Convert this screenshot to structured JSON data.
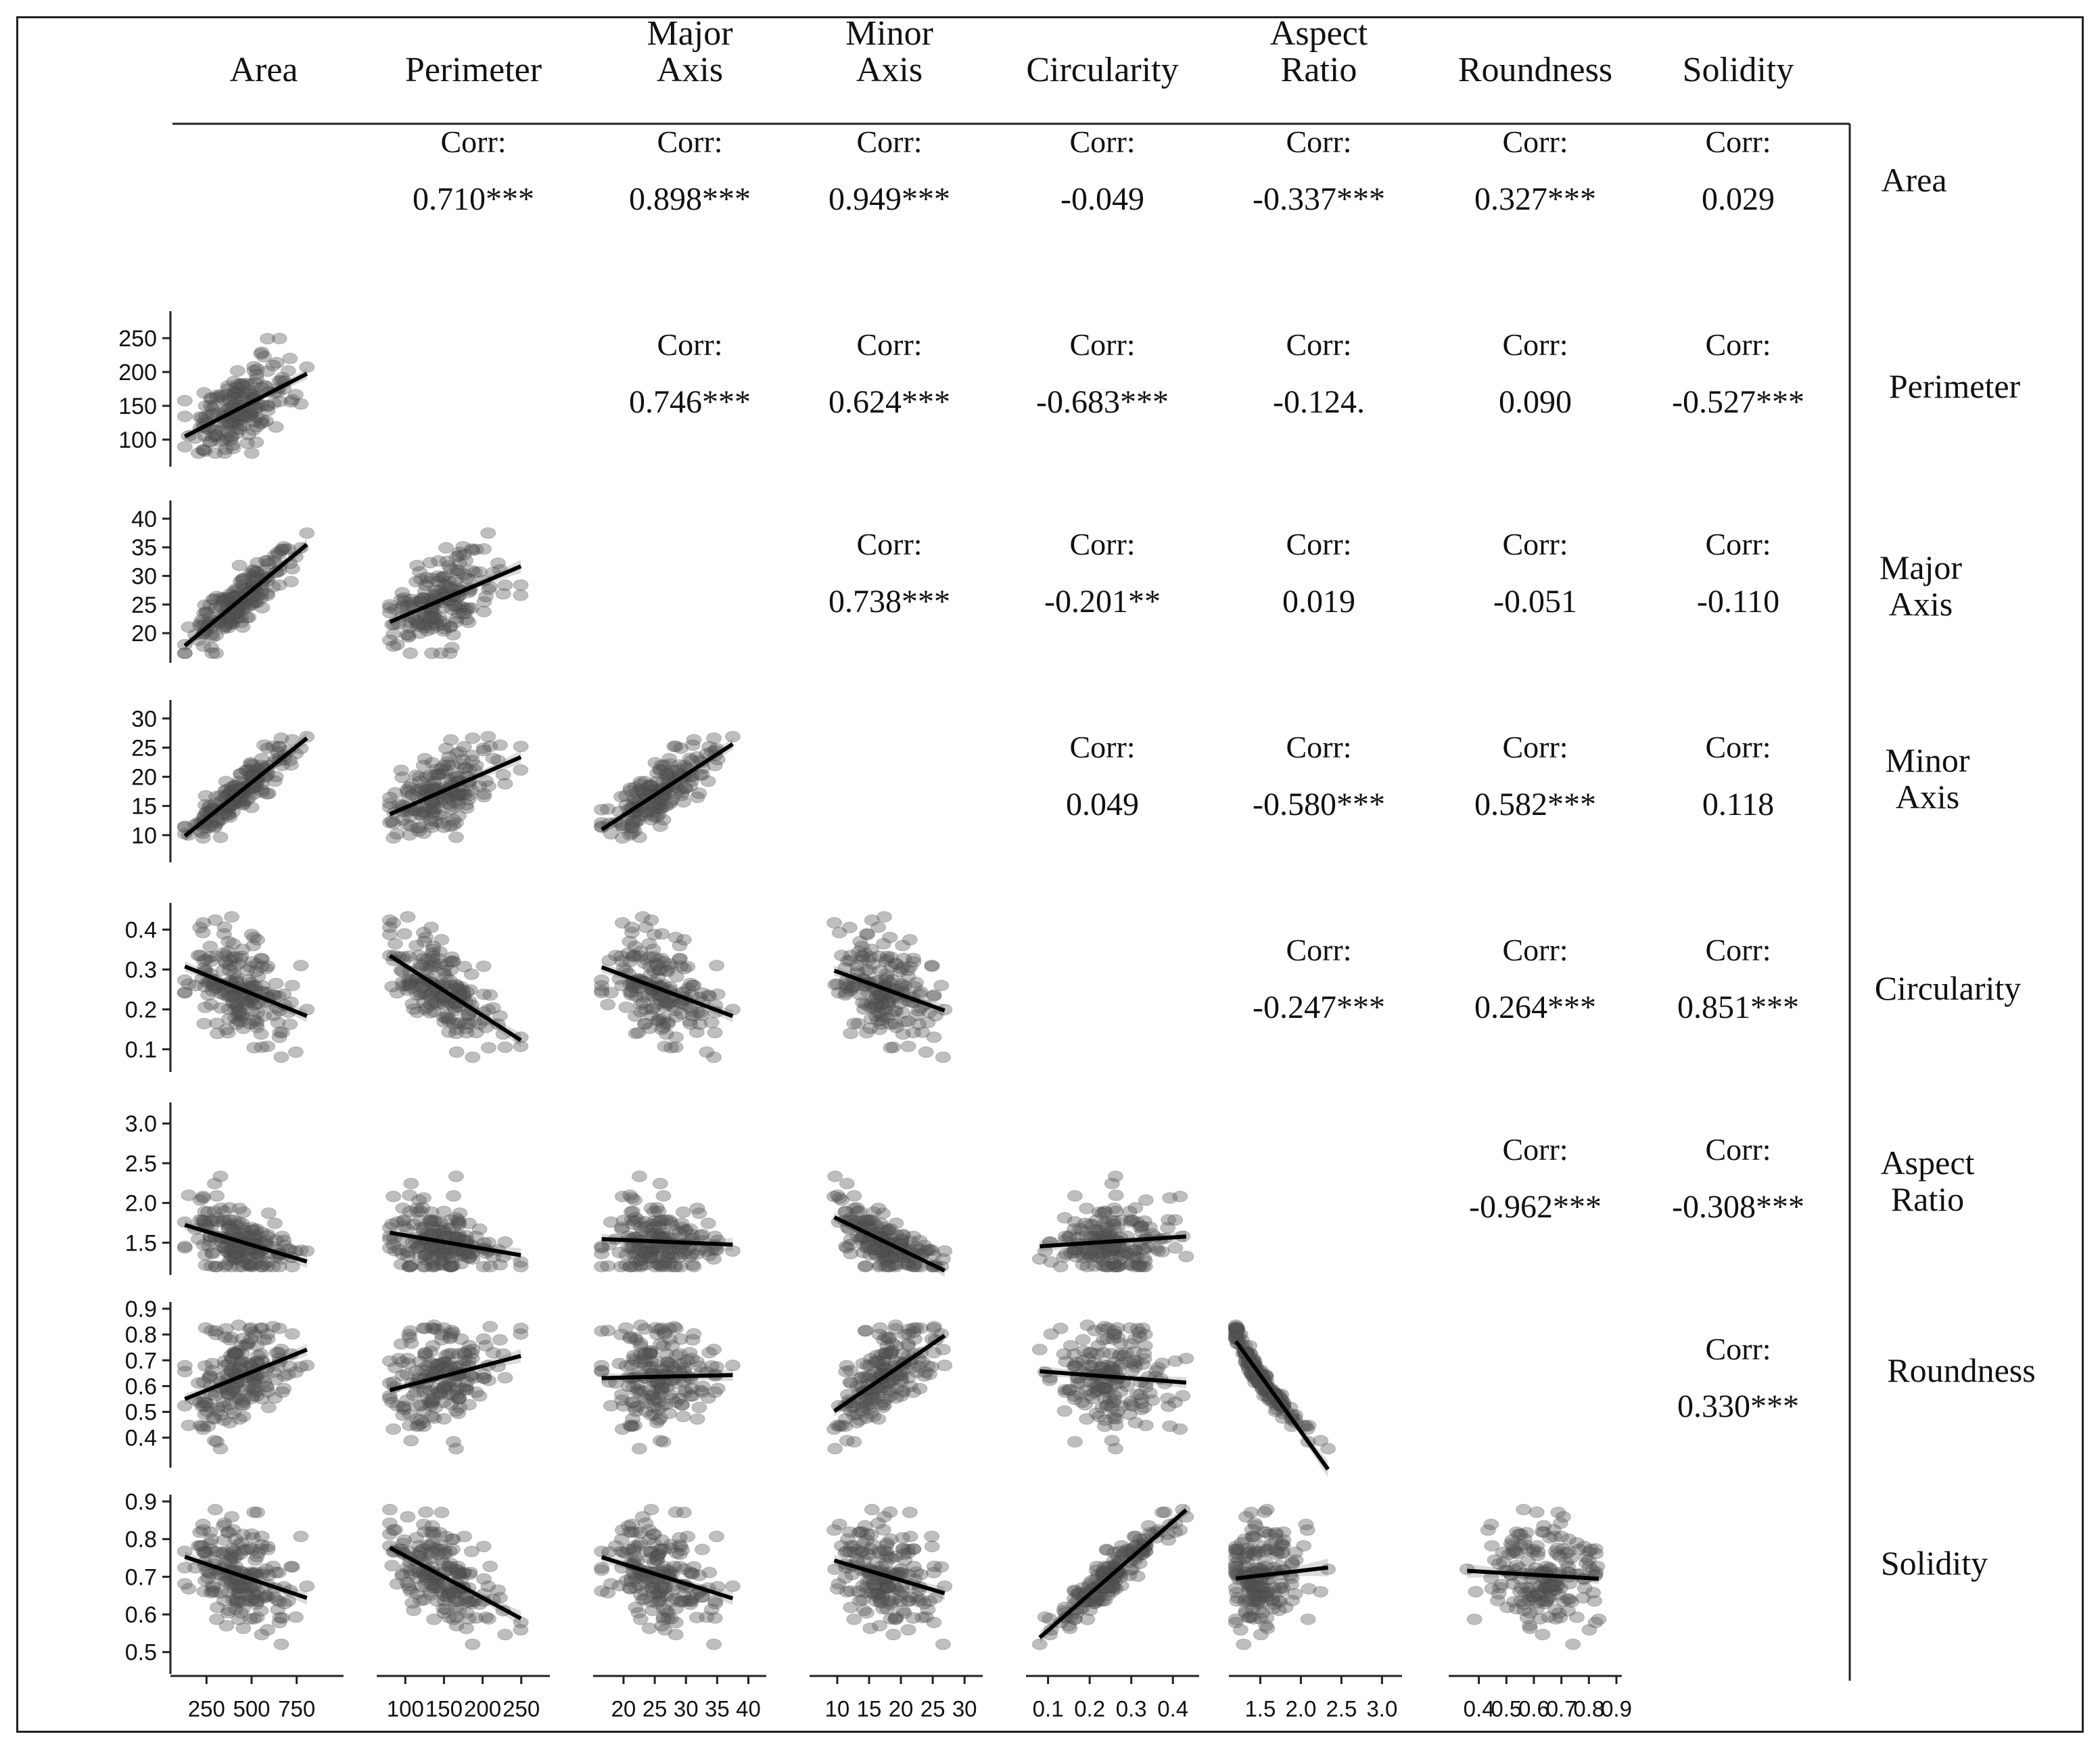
{
  "chart_data": {
    "type": "scatter",
    "variables": [
      "Area",
      "Perimeter",
      "Major Axis",
      "Minor Axis",
      "Circularity",
      "Aspect Ratio",
      "Roundness",
      "Solidity"
    ],
    "col_headers": [
      [
        "Area"
      ],
      [
        "Perimeter"
      ],
      [
        "Major",
        "Axis"
      ],
      [
        "Minor",
        "Axis"
      ],
      [
        "Circularity"
      ],
      [
        "Aspect",
        "Ratio"
      ],
      [
        "Roundness"
      ],
      [
        "Solidity"
      ]
    ],
    "row_headers": [
      [
        "Area"
      ],
      [
        "Perimeter"
      ],
      [
        "Major",
        "Axis"
      ],
      [
        "Minor",
        "Axis"
      ],
      [
        "Circularity"
      ],
      [
        "Aspect",
        "Ratio"
      ],
      [
        "Roundness"
      ],
      [
        "Solidity"
      ]
    ],
    "corr_label": "Corr:",
    "correlations": [
      {
        "row": 0,
        "col": 1,
        "text": "0.710***"
      },
      {
        "row": 0,
        "col": 2,
        "text": "0.898***"
      },
      {
        "row": 0,
        "col": 3,
        "text": "0.949***"
      },
      {
        "row": 0,
        "col": 4,
        "text": "-0.049"
      },
      {
        "row": 0,
        "col": 5,
        "text": "-0.337***"
      },
      {
        "row": 0,
        "col": 6,
        "text": "0.327***"
      },
      {
        "row": 0,
        "col": 7,
        "text": "0.029"
      },
      {
        "row": 1,
        "col": 2,
        "text": "0.746***"
      },
      {
        "row": 1,
        "col": 3,
        "text": "0.624***"
      },
      {
        "row": 1,
        "col": 4,
        "text": "-0.683***"
      },
      {
        "row": 1,
        "col": 5,
        "text": "-0.124."
      },
      {
        "row": 1,
        "col": 6,
        "text": "0.090"
      },
      {
        "row": 1,
        "col": 7,
        "text": "-0.527***"
      },
      {
        "row": 2,
        "col": 3,
        "text": "0.738***"
      },
      {
        "row": 2,
        "col": 4,
        "text": "-0.201**"
      },
      {
        "row": 2,
        "col": 5,
        "text": "0.019"
      },
      {
        "row": 2,
        "col": 6,
        "text": "-0.051"
      },
      {
        "row": 2,
        "col": 7,
        "text": "-0.110"
      },
      {
        "row": 3,
        "col": 4,
        "text": "0.049"
      },
      {
        "row": 3,
        "col": 5,
        "text": "-0.580***"
      },
      {
        "row": 3,
        "col": 6,
        "text": "0.582***"
      },
      {
        "row": 3,
        "col": 7,
        "text": "0.118"
      },
      {
        "row": 4,
        "col": 5,
        "text": "-0.247***"
      },
      {
        "row": 4,
        "col": 6,
        "text": "0.264***"
      },
      {
        "row": 4,
        "col": 7,
        "text": "0.851***"
      },
      {
        "row": 5,
        "col": 6,
        "text": "-0.962***"
      },
      {
        "row": 5,
        "col": 7,
        "text": "-0.308***"
      },
      {
        "row": 6,
        "col": 7,
        "text": "0.330***"
      }
    ],
    "axes": {
      "Area": {
        "range": [
          80,
          980
        ],
        "ticks": [
          "250",
          "500",
          "750"
        ],
        "tick_values": [
          250,
          500,
          750
        ]
      },
      "Perimeter": {
        "range": [
          70,
          280
        ],
        "ticks": [
          "100",
          "150",
          "200",
          "250"
        ],
        "tick_values": [
          100,
          150,
          200,
          250
        ]
      },
      "Major Axis": {
        "range": [
          16,
          42
        ],
        "ticks": [
          "20",
          "25",
          "30",
          "35",
          "40"
        ],
        "tick_values": [
          20,
          25,
          30,
          35,
          40
        ]
      },
      "Minor Axis": {
        "range": [
          6.5,
          32
        ],
        "ticks": [
          "10",
          "15",
          "20",
          "25",
          "30"
        ],
        "tick_values": [
          10,
          15,
          20,
          25,
          30
        ]
      },
      "Circularity": {
        "range": [
          0.06,
          0.45
        ],
        "ticks": [
          "0.1",
          "0.2",
          "0.3",
          "0.4"
        ],
        "tick_values": [
          0.1,
          0.2,
          0.3,
          0.4
        ]
      },
      "Aspect Ratio": {
        "range": [
          1.18,
          3.18
        ],
        "ticks": [
          "1.5",
          "2.0",
          "2.5",
          "3.0"
        ],
        "tick_values": [
          1.5,
          2.0,
          2.5,
          3.0
        ]
      },
      "Roundness": {
        "range": [
          0.31,
          0.9
        ],
        "ticks": [
          "0.4",
          "0.5",
          "0.6",
          "0.7",
          "0.8",
          "0.9"
        ],
        "tick_values": [
          0.4,
          0.5,
          0.6,
          0.7,
          0.8,
          0.9
        ]
      },
      "Solidity": {
        "range": [
          0.46,
          0.9
        ],
        "ticks": [
          "0.5",
          "0.6",
          "0.7",
          "0.8",
          "0.9"
        ],
        "tick_values": [
          0.5,
          0.6,
          0.7,
          0.8,
          0.9
        ]
      }
    },
    "y_tick_labels": {
      "Perimeter": [
        "100",
        "150",
        "200",
        "250"
      ],
      "Major Axis": [
        "20",
        "25",
        "30",
        "35",
        "40"
      ],
      "Minor Axis": [
        "10",
        "15",
        "20",
        "25",
        "30"
      ],
      "Circularity": [
        "0.1",
        "0.2",
        "0.3",
        "0.4"
      ],
      "Aspect Ratio": [
        "1.5",
        "2.0",
        "2.5",
        "3.0"
      ],
      "Roundness": [
        "0.4",
        "0.5",
        "0.6",
        "0.7",
        "0.8",
        "0.9"
      ],
      "Solidity": [
        "0.5",
        "0.6",
        "0.7",
        "0.8",
        "0.9"
      ]
    },
    "x_tick_labels": {
      "Area": [
        "250",
        "500",
        "750"
      ],
      "Perimeter": [
        "100",
        "150",
        "200",
        "250"
      ],
      "Major Axis": [
        "20",
        "25",
        "30",
        "35",
        "40"
      ],
      "Minor Axis": [
        "10",
        "15",
        "20",
        "25",
        "30"
      ],
      "Circularity": [
        "0.1",
        "0.2",
        "0.3",
        "0.4"
      ],
      "Aspect Ratio": [
        "1.5",
        "2.0",
        "2.5",
        "3.0"
      ],
      "Roundness": [
        "0.4",
        "0.5",
        "0.6",
        "0.7",
        "0.8",
        "0.9"
      ]
    },
    "point_color": "#555555",
    "fit_line_color": "#000000",
    "band_color": "#bdbdbd",
    "grid": false
  }
}
